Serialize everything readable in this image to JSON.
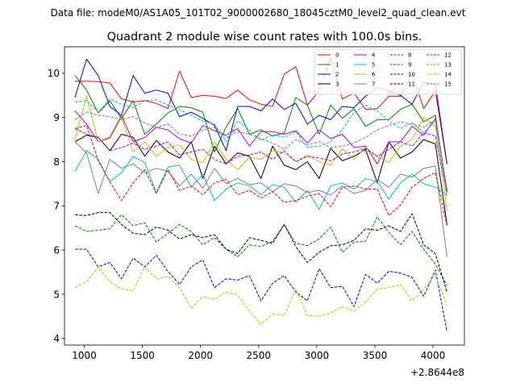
{
  "chart_data": {
    "type": "line",
    "suptitle": "Data file: modeM0/AS1A05_101T02_9000002680_18045cztM0_level2_quad_clean.evt",
    "title": "Quadrant 2 module wise count rates with 100.0s bins.",
    "xlabel": "",
    "ylabel": "",
    "x_offset_label": "+2.8644e8",
    "xlim": [
      830,
      4270
    ],
    "ylim": [
      3.85,
      10.6
    ],
    "xticks": [
      1000,
      1500,
      2000,
      2500,
      3000,
      3500,
      4000
    ],
    "xtick_labels": [
      "1000",
      "1500",
      "2000",
      "2500",
      "3000",
      "3500",
      "4000"
    ],
    "yticks": [
      4,
      5,
      6,
      7,
      8,
      9,
      10
    ],
    "ytick_labels": [
      "4",
      "5",
      "6",
      "7",
      "8",
      "9",
      "10"
    ],
    "legend": {
      "position": "top-right",
      "columns": 4
    },
    "x": [
      920,
      1020,
      1120,
      1220,
      1320,
      1420,
      1520,
      1620,
      1720,
      1820,
      1920,
      2020,
      2120,
      2220,
      2320,
      2420,
      2520,
      2620,
      2720,
      2820,
      2920,
      3020,
      3120,
      3220,
      3320,
      3420,
      3520,
      3620,
      3720,
      3820,
      3920,
      4020,
      4120
    ],
    "series": [
      {
        "name": "0",
        "color": "#ff0000",
        "dash": "solid",
        "values": [
          9.82,
          9.82,
          9.81,
          9.78,
          9.42,
          9.35,
          9.38,
          9.32,
          9.2,
          10.05,
          9.45,
          9.5,
          9.48,
          9.43,
          9.62,
          9.4,
          9.3,
          9.25,
          9.98,
          10.15,
          9.28,
          9.6,
          10.35,
          9.42,
          9.55,
          9.18,
          9.2,
          9.48,
          9.48,
          10.0,
          9.2,
          9.6,
          7.95
        ]
      },
      {
        "name": "1",
        "color": "#008000",
        "dash": "solid",
        "values": [
          9.95,
          9.62,
          9.1,
          9.38,
          8.98,
          9.38,
          8.62,
          8.85,
          9.1,
          9.25,
          9.22,
          9.12,
          8.22,
          8.78,
          9.2,
          8.62,
          8.72,
          8.58,
          8.65,
          9.45,
          9.28,
          8.62,
          9.28,
          8.98,
          9.2,
          8.8,
          8.95,
          8.95,
          9.18,
          9.3,
          8.9,
          9.05,
          7.3
        ]
      },
      {
        "name": "2",
        "color": "#0000ff",
        "dash": "solid",
        "values": [
          9.45,
          10.32,
          9.95,
          9.25,
          9.05,
          9.95,
          9.55,
          9.62,
          9.55,
          9.02,
          9.12,
          8.98,
          8.82,
          8.25,
          9.25,
          9.25,
          9.15,
          9.42,
          9.18,
          9.32,
          8.85,
          9.05,
          8.95,
          9.25,
          9.22,
          9.48,
          9.68,
          9.6,
          9.5,
          9.3,
          9.8,
          9.75,
          7.95
        ]
      },
      {
        "name": "3",
        "color": "#000000",
        "dash": "solid",
        "values": [
          8.45,
          8.6,
          8.55,
          8.25,
          8.62,
          8.55,
          8.12,
          8.48,
          8.22,
          8.08,
          8.45,
          7.62,
          8.35,
          7.95,
          8.2,
          8.12,
          7.62,
          8.35,
          7.92,
          7.82,
          8.0,
          7.62,
          8.3,
          8.02,
          8.12,
          8.28,
          7.52,
          8.45,
          8.08,
          8.22,
          8.5,
          8.4,
          6.58
        ]
      },
      {
        "name": "4",
        "color": "#bf00bf",
        "dash": "solid",
        "values": [
          9.15,
          8.85,
          8.45,
          8.55,
          9.05,
          8.45,
          8.55,
          8.78,
          8.72,
          8.52,
          8.42,
          8.82,
          8.7,
          8.6,
          8.75,
          8.35,
          8.68,
          8.68,
          8.62,
          8.7,
          8.42,
          8.72,
          8.52,
          8.62,
          8.32,
          8.35,
          7.95,
          8.45,
          8.45,
          8.8,
          8.6,
          8.98,
          7.35
        ]
      },
      {
        "name": "5",
        "color": "#00bfbf",
        "dash": "solid",
        "values": [
          7.78,
          8.25,
          8.05,
          7.55,
          7.75,
          8.12,
          7.98,
          7.3,
          7.88,
          7.92,
          7.42,
          7.72,
          7.12,
          7.38,
          7.52,
          7.45,
          7.25,
          7.48,
          7.42,
          7.08,
          7.35,
          6.92,
          7.45,
          7.52,
          7.38,
          7.62,
          7.55,
          7.15,
          7.52,
          7.72,
          7.5,
          7.42,
          7.25
        ]
      },
      {
        "name": "6",
        "color": "#bfbf00",
        "dash": "solid",
        "values": [
          8.5,
          9.48,
          8.45,
          8.52,
          9.0,
          8.22,
          8.45,
          8.12,
          8.32,
          8.38,
          8.05,
          7.98,
          8.45,
          8.05,
          7.82,
          8.1,
          8.05,
          8.25,
          8.2,
          8.0,
          8.15,
          8.0,
          7.92,
          8.3,
          8.05,
          8.32,
          8.12,
          7.98,
          8.35,
          8.5,
          9.0,
          8.8,
          6.9
        ]
      },
      {
        "name": "7",
        "color": "#808080",
        "dash": "solid",
        "values": [
          8.45,
          8.2,
          7.28,
          8.05,
          7.85,
          7.95,
          7.75,
          7.85,
          7.78,
          7.45,
          7.72,
          7.4,
          7.85,
          7.5,
          7.62,
          7.48,
          7.52,
          7.32,
          7.5,
          7.45,
          7.3,
          7.35,
          7.25,
          7.45,
          7.28,
          7.35,
          7.6,
          7.42,
          7.72,
          7.65,
          7.85,
          7.9,
          5.85
        ]
      },
      {
        "name": "8",
        "color": "#ff0000",
        "dash": "dashed",
        "values": [
          8.75,
          8.82,
          8.02,
          7.55,
          7.12,
          7.52,
          7.82,
          7.28,
          7.82,
          7.35,
          7.45,
          7.25,
          7.52,
          7.6,
          7.25,
          7.35,
          7.18,
          7.32,
          7.08,
          7.12,
          7.22,
          7.28,
          6.98,
          7.42,
          7.45,
          7.38,
          7.38,
          6.78,
          7.02,
          7.42,
          7.62,
          7.75,
          6.55
        ]
      },
      {
        "name": "9",
        "color": "#008000",
        "dash": "dashed",
        "values": [
          6.55,
          6.42,
          6.45,
          6.48,
          6.8,
          6.55,
          6.62,
          6.18,
          6.38,
          6.58,
          6.42,
          6.12,
          6.28,
          6.02,
          5.85,
          6.12,
          6.08,
          6.2,
          6.58,
          6.15,
          6.1,
          6.25,
          6.52,
          5.95,
          6.18,
          6.2,
          6.75,
          6.4,
          6.12,
          6.42,
          6.02,
          5.68,
          5.2
        ]
      },
      {
        "name": "10",
        "color": "#0000ff",
        "dash": "dashed",
        "values": [
          6.02,
          6.02,
          5.62,
          5.72,
          5.35,
          5.82,
          5.62,
          5.88,
          5.52,
          5.22,
          5.62,
          5.78,
          5.15,
          5.35,
          5.32,
          5.42,
          4.85,
          5.25,
          5.42,
          5.05,
          4.85,
          5.58,
          5.15,
          5.18,
          4.72,
          5.45,
          5.25,
          5.52,
          5.48,
          5.38,
          4.95,
          5.55,
          4.15
        ]
      },
      {
        "name": "11",
        "color": "#000000",
        "dash": "dashed",
        "values": [
          6.8,
          6.78,
          6.85,
          6.85,
          6.58,
          6.38,
          6.35,
          6.52,
          6.45,
          6.25,
          6.35,
          6.28,
          6.35,
          6.02,
          5.92,
          6.28,
          6.22,
          6.15,
          6.58,
          6.08,
          5.72,
          5.95,
          6.1,
          6.12,
          6.22,
          6.48,
          6.45,
          6.55,
          6.42,
          6.82,
          6.12,
          5.92,
          5.05
        ]
      },
      {
        "name": "12",
        "color": "#bf00bf",
        "dash": "dashed",
        "values": [
          8.75,
          8.62,
          8.55,
          8.25,
          8.32,
          8.42,
          8.28,
          8.35,
          8.45,
          8.15,
          8.22,
          8.28,
          8.05,
          7.95,
          8.12,
          8.15,
          8.22,
          8.05,
          8.25,
          8.0,
          8.12,
          8.08,
          8.02,
          8.18,
          8.22,
          8.3,
          8.12,
          8.28,
          8.45,
          8.35,
          8.65,
          8.58,
          7.3
        ]
      },
      {
        "name": "13",
        "color": "#00bfbf",
        "dash": "dashed",
        "values": [
          9.35,
          9.38,
          9.12,
          9.42,
          9.3,
          9.22,
          9.38,
          9.4,
          9.28,
          9.18,
          9.05,
          8.92,
          8.85,
          8.45,
          8.92,
          8.72,
          8.48,
          8.62,
          8.55,
          8.68,
          8.32,
          8.35,
          8.45,
          8.72,
          9.12,
          9.28,
          9.15,
          8.92,
          8.75,
          8.88,
          8.65,
          8.92,
          7.38
        ]
      },
      {
        "name": "14",
        "color": "#bfbf00",
        "dash": "dashed",
        "values": [
          5.15,
          5.28,
          5.62,
          5.28,
          5.12,
          5.08,
          5.62,
          5.35,
          5.4,
          5.15,
          4.68,
          4.95,
          4.88,
          5.05,
          4.98,
          4.62,
          4.32,
          4.55,
          4.52,
          5.12,
          4.52,
          4.5,
          4.58,
          4.72,
          4.62,
          4.82,
          5.12,
          5.15,
          5.22,
          4.85,
          5.12,
          5.42,
          4.75
        ]
      },
      {
        "name": "15",
        "color": "#808080",
        "dash": "dashed",
        "values": [
          8.95,
          9.12,
          9.05,
          9.02,
          8.95,
          9.02,
          8.88,
          8.78,
          8.85,
          8.62,
          8.58,
          8.72,
          8.78,
          8.55,
          8.68,
          8.62,
          8.52,
          8.42,
          8.28,
          8.5,
          8.38,
          8.45,
          8.32,
          8.35,
          8.42,
          8.55,
          8.72,
          8.82,
          8.9,
          8.85,
          8.78,
          8.95,
          7.2
        ]
      }
    ]
  }
}
